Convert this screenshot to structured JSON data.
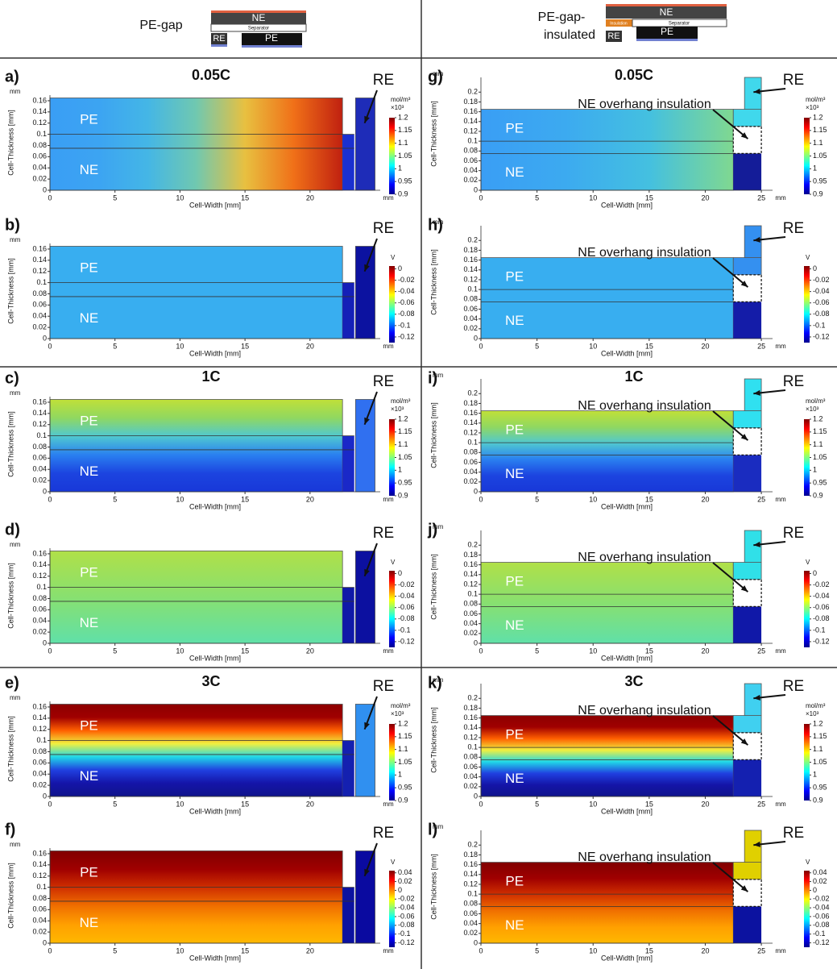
{
  "header": {
    "left": {
      "label": "PE-gap",
      "ne": "NE",
      "separator": "Separator",
      "re": "RE",
      "pe": "PE"
    },
    "right": {
      "label_lines": [
        "PE-gap-",
        "insulated"
      ],
      "ne": "NE",
      "insulation": "Insulation",
      "separator": "Separator",
      "re": "RE",
      "pe": "PE"
    }
  },
  "colormap": [
    "#00008f",
    "#0000ff",
    "#0080ff",
    "#00ffff",
    "#80ff80",
    "#ffff00",
    "#ff8000",
    "#ff0000",
    "#800000"
  ],
  "panels": [
    {
      "label": "a)",
      "title": "0.05C",
      "xlabel": "Cell-Width [mm]",
      "ylabel": "Cell-Thickness [mm]",
      "x_unit": "mm",
      "y_unit": "mm",
      "xlim": [
        0,
        25.4
      ],
      "xticks": [
        0,
        5,
        10,
        15,
        20
      ],
      "ylim": [
        0,
        0.17
      ],
      "yticks": [
        0,
        0.02,
        0.04,
        0.06,
        0.08,
        0.1,
        0.12,
        0.14,
        0.16
      ],
      "regions": [
        "PE",
        "NE",
        "RE"
      ],
      "cbar_unit": "mol/m³",
      "cbar_scale": "×10³",
      "cbar_lim": [
        0.9,
        1.2
      ],
      "cbar_ticks": [
        0.9,
        0.95,
        1,
        1.05,
        1.1,
        1.15,
        1.2
      ],
      "field": {
        "dir": "h",
        "colors": [
          "#3a9ef5",
          "#3ca4f2",
          "#44b6e6",
          "#70c8b0",
          "#e8c040",
          "#f07018",
          "#c02010"
        ]
      },
      "gap_color": "#1a30d0",
      "re_color": "#1e2cb8"
    },
    {
      "label": "b)",
      "xlabel": "Cell-Width [mm]",
      "ylabel": "Cell-Thickness [mm]",
      "x_unit": "mm",
      "y_unit": "mm",
      "xlim": [
        0,
        25.4
      ],
      "xticks": [
        0,
        5,
        10,
        15,
        20
      ],
      "ylim": [
        0,
        0.17
      ],
      "yticks": [
        0,
        0.02,
        0.04,
        0.06,
        0.08,
        0.1,
        0.12,
        0.14,
        0.16
      ],
      "regions": [
        "PE",
        "NE",
        "RE"
      ],
      "cbar_unit": "V",
      "cbar_lim": [
        -0.13,
        0.005
      ],
      "cbar_ticks": [
        0,
        -0.02,
        -0.04,
        -0.06,
        -0.08,
        -0.1,
        -0.12
      ],
      "field": {
        "dir": "h",
        "colors": [
          "#38aef0",
          "#38aef0"
        ]
      },
      "gap_color": "#1420b8",
      "re_color": "#0c12a0"
    },
    {
      "label": "c)",
      "title": "1C",
      "xlabel": "Cell-Width [mm]",
      "ylabel": "Cell-Thickness [mm]",
      "x_unit": "mm",
      "y_unit": "mm",
      "xlim": [
        0,
        25.4
      ],
      "xticks": [
        0,
        5,
        10,
        15,
        20
      ],
      "ylim": [
        0,
        0.17
      ],
      "yticks": [
        0,
        0.02,
        0.04,
        0.06,
        0.08,
        0.1,
        0.12,
        0.14,
        0.16
      ],
      "regions": [
        "PE",
        "NE",
        "RE"
      ],
      "cbar_unit": "mol/m³",
      "cbar_scale": "×10³",
      "cbar_lim": [
        0.9,
        1.2
      ],
      "cbar_ticks": [
        0.9,
        0.95,
        1,
        1.05,
        1.1,
        1.15,
        1.2
      ],
      "field": {
        "dir": "v",
        "colors": [
          "#c0e038",
          "#90d860",
          "#50c8d0",
          "#2a80f0",
          "#1c44e0",
          "#1838d8"
        ]
      },
      "gap_color": "#1a28c8",
      "re_color": "#3070f0"
    },
    {
      "label": "d)",
      "xlabel": "Cell-Width [mm]",
      "ylabel": "Cell-Thickness [mm]",
      "x_unit": "mm",
      "y_unit": "mm",
      "xlim": [
        0,
        25.4
      ],
      "xticks": [
        0,
        5,
        10,
        15,
        20
      ],
      "ylim": [
        0,
        0.17
      ],
      "yticks": [
        0,
        0.02,
        0.04,
        0.06,
        0.08,
        0.1,
        0.12,
        0.14,
        0.16
      ],
      "regions": [
        "PE",
        "NE",
        "RE"
      ],
      "cbar_unit": "V",
      "cbar_lim": [
        -0.13,
        0.005
      ],
      "cbar_ticks": [
        0,
        -0.02,
        -0.04,
        -0.06,
        -0.08,
        -0.1,
        -0.12
      ],
      "field": {
        "dir": "v",
        "colors": [
          "#b0e048",
          "#88e070",
          "#60e0a8"
        ]
      },
      "gap_color": "#1018a8",
      "re_color": "#0c10a0"
    },
    {
      "label": "e)",
      "title": "3C",
      "xlabel": "Cell-Width [mm]",
      "ylabel": "Cell-Thickness [mm]",
      "x_unit": "mm",
      "y_unit": "mm",
      "xlim": [
        0,
        25.4
      ],
      "xticks": [
        0,
        5,
        10,
        15,
        20
      ],
      "ylim": [
        0,
        0.17
      ],
      "yticks": [
        0,
        0.02,
        0.04,
        0.06,
        0.08,
        0.1,
        0.12,
        0.14,
        0.16
      ],
      "regions": [
        "PE",
        "NE",
        "RE"
      ],
      "cbar_unit": "mol/m³",
      "cbar_scale": "×10³",
      "cbar_lim": [
        0.9,
        1.2
      ],
      "cbar_ticks": [
        0.9,
        0.95,
        1,
        1.05,
        1.1,
        1.15,
        1.2
      ],
      "field": {
        "dir": "v",
        "colors": [
          "#8c0000",
          "#a00000",
          "#ff6000",
          "#f0f040",
          "#20d8e8",
          "#2040e0",
          "#1414a8",
          "#10148c"
        ]
      },
      "gap_color": "#1420b0",
      "re_color": "#3090f0"
    },
    {
      "label": "f)",
      "xlabel": "Cell-Width [mm]",
      "ylabel": "Cell-Thickness [mm]",
      "x_unit": "mm",
      "y_unit": "mm",
      "xlim": [
        0,
        25.4
      ],
      "xticks": [
        0,
        5,
        10,
        15,
        20
      ],
      "ylim": [
        0,
        0.17
      ],
      "yticks": [
        0,
        0.02,
        0.04,
        0.06,
        0.08,
        0.1,
        0.12,
        0.14,
        0.16
      ],
      "regions": [
        "PE",
        "NE",
        "RE"
      ],
      "cbar_unit": "V",
      "cbar_lim": [
        -0.13,
        0.045
      ],
      "cbar_ticks": [
        0.04,
        0.02,
        0,
        -0.02,
        -0.04,
        -0.06,
        -0.08,
        -0.1,
        -0.12
      ],
      "field": {
        "dir": "v",
        "colors": [
          "#800000",
          "#a00000",
          "#d03000",
          "#f07000",
          "#ffa000",
          "#ffb800"
        ]
      },
      "gap_color": "#0c12a0",
      "re_color": "#0a0aa0"
    },
    {
      "label": "g)",
      "title": "0.05C",
      "annotation": "NE overhang insulation",
      "xlabel": "Cell-Width [mm]",
      "ylabel": "Cell-Thickness [mm]",
      "x_unit": "mm",
      "y_unit": "mm",
      "xlim": [
        0,
        26
      ],
      "xticks": [
        0,
        5,
        10,
        15,
        20,
        25
      ],
      "ylim": [
        0,
        0.23
      ],
      "yticks": [
        0,
        0.02,
        0.04,
        0.06,
        0.08,
        0.1,
        0.12,
        0.14,
        0.16,
        0.18,
        0.2
      ],
      "regions": [
        "PE",
        "NE",
        "RE"
      ],
      "cbar_unit": "mol/m³",
      "cbar_scale": "×10³",
      "cbar_lim": [
        0.9,
        1.2
      ],
      "cbar_ticks": [
        0.9,
        0.95,
        1,
        1.05,
        1.1,
        1.15,
        1.2
      ],
      "field": {
        "dir": "h",
        "colors": [
          "#3a9ef5",
          "#3caaf0",
          "#44c0e0",
          "#80d890"
        ]
      },
      "gap_color": "#141c98",
      "re_color": "#40d8ec"
    },
    {
      "label": "h)",
      "annotation": "NE overhang insulation",
      "xlabel": "Cell-Width [mm]",
      "ylabel": "Cell-Thickness [mm]",
      "x_unit": "mm",
      "y_unit": "mm",
      "xlim": [
        0,
        26
      ],
      "xticks": [
        0,
        5,
        10,
        15,
        20,
        25
      ],
      "ylim": [
        0,
        0.23
      ],
      "yticks": [
        0,
        0.02,
        0.04,
        0.06,
        0.08,
        0.1,
        0.12,
        0.14,
        0.16,
        0.18,
        0.2
      ],
      "regions": [
        "PE",
        "NE",
        "RE"
      ],
      "cbar_unit": "V",
      "cbar_lim": [
        -0.13,
        0.005
      ],
      "cbar_ticks": [
        0,
        -0.02,
        -0.04,
        -0.06,
        -0.08,
        -0.1,
        -0.12
      ],
      "field": {
        "dir": "h",
        "colors": [
          "#38aef0",
          "#38aef0"
        ]
      },
      "gap_color": "#141ca8",
      "re_color": "#3490f0"
    },
    {
      "label": "i)",
      "title": "1C",
      "annotation": "NE overhang insulation",
      "xlabel": "Cell-Width [mm]",
      "ylabel": "Cell-Thickness [mm]",
      "x_unit": "mm",
      "y_unit": "mm",
      "xlim": [
        0,
        26
      ],
      "xticks": [
        0,
        5,
        10,
        15,
        20,
        25
      ],
      "ylim": [
        0,
        0.23
      ],
      "yticks": [
        0,
        0.02,
        0.04,
        0.06,
        0.08,
        0.1,
        0.12,
        0.14,
        0.16,
        0.18,
        0.2
      ],
      "regions": [
        "PE",
        "NE",
        "RE"
      ],
      "cbar_unit": "mol/m³",
      "cbar_scale": "×10³",
      "cbar_lim": [
        0.9,
        1.2
      ],
      "cbar_ticks": [
        0.9,
        0.95,
        1,
        1.05,
        1.1,
        1.15,
        1.2
      ],
      "field": {
        "dir": "v",
        "colors": [
          "#c0e038",
          "#90d860",
          "#50c8d0",
          "#2a80f0",
          "#1c44e0",
          "#1838d8"
        ]
      },
      "gap_color": "#1a2cc0",
      "re_color": "#30e0f0"
    },
    {
      "label": "j)",
      "annotation": "NE overhang insulation",
      "xlabel": "Cell-Width [mm]",
      "ylabel": "Cell-Thickness [mm]",
      "x_unit": "mm",
      "y_unit": "mm",
      "xlim": [
        0,
        26
      ],
      "xticks": [
        0,
        5,
        10,
        15,
        20,
        25
      ],
      "ylim": [
        0,
        0.23
      ],
      "yticks": [
        0,
        0.02,
        0.04,
        0.06,
        0.08,
        0.1,
        0.12,
        0.14,
        0.16,
        0.18,
        0.2
      ],
      "regions": [
        "PE",
        "NE",
        "RE"
      ],
      "cbar_unit": "V",
      "cbar_lim": [
        -0.13,
        0.005
      ],
      "cbar_ticks": [
        0,
        -0.02,
        -0.04,
        -0.06,
        -0.08,
        -0.1,
        -0.12
      ],
      "field": {
        "dir": "v",
        "colors": [
          "#b0e048",
          "#88e070",
          "#60e0a8"
        ]
      },
      "gap_color": "#1018a8",
      "re_color": "#30e0e8"
    },
    {
      "label": "k)",
      "title": "3C",
      "annotation": "NE overhang insulation",
      "xlabel": "Cell-Width [mm]",
      "ylabel": "Cell-Thickness [mm]",
      "x_unit": "mm",
      "y_unit": "mm",
      "xlim": [
        0,
        26
      ],
      "xticks": [
        0,
        5,
        10,
        15,
        20,
        25
      ],
      "ylim": [
        0,
        0.23
      ],
      "yticks": [
        0,
        0.02,
        0.04,
        0.06,
        0.08,
        0.1,
        0.12,
        0.14,
        0.16,
        0.18,
        0.2
      ],
      "regions": [
        "PE",
        "NE",
        "RE"
      ],
      "cbar_unit": "mol/m³",
      "cbar_scale": "×10³",
      "cbar_lim": [
        0.9,
        1.2
      ],
      "cbar_ticks": [
        0.9,
        0.95,
        1,
        1.05,
        1.1,
        1.15,
        1.2
      ],
      "field": {
        "dir": "v",
        "colors": [
          "#8c0000",
          "#a00000",
          "#ff6000",
          "#f0f040",
          "#20d8e8",
          "#2040e0",
          "#1414a8",
          "#10148c"
        ]
      },
      "gap_color": "#1420b0",
      "re_color": "#40d0f0"
    },
    {
      "label": "l)",
      "annotation": "NE overhang insulation",
      "xlabel": "Cell-Width [mm]",
      "ylabel": "Cell-Thickness [mm]",
      "x_unit": "mm",
      "y_unit": "mm",
      "xlim": [
        0,
        26
      ],
      "xticks": [
        0,
        5,
        10,
        15,
        20,
        25
      ],
      "ylim": [
        0,
        0.23
      ],
      "yticks": [
        0,
        0.02,
        0.04,
        0.06,
        0.08,
        0.1,
        0.12,
        0.14,
        0.16,
        0.18,
        0.2
      ],
      "regions": [
        "PE",
        "NE",
        "RE"
      ],
      "cbar_unit": "V",
      "cbar_lim": [
        -0.13,
        0.045
      ],
      "cbar_ticks": [
        0.04,
        0.02,
        0,
        -0.02,
        -0.04,
        -0.06,
        -0.08,
        -0.1,
        -0.12
      ],
      "field": {
        "dir": "v",
        "colors": [
          "#800000",
          "#a00000",
          "#d03000",
          "#f07000",
          "#ffa000",
          "#ffb800"
        ]
      },
      "gap_color": "#0c12a0",
      "re_color": "#e0d000"
    }
  ]
}
